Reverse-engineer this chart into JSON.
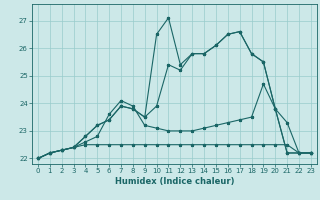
{
  "xlabel": "Humidex (Indice chaleur)",
  "bg_color": "#cce8e8",
  "line_color": "#1a6666",
  "grid_color": "#99cccc",
  "xlim": [
    -0.5,
    23.5
  ],
  "ylim": [
    21.8,
    27.6
  ],
  "yticks": [
    22,
    23,
    24,
    25,
    26,
    27
  ],
  "xticks": [
    0,
    1,
    2,
    3,
    4,
    5,
    6,
    7,
    8,
    9,
    10,
    11,
    12,
    13,
    14,
    15,
    16,
    17,
    18,
    19,
    20,
    21,
    22,
    23
  ],
  "line1_x": [
    0,
    1,
    2,
    3,
    4,
    5,
    6,
    7,
    8,
    9,
    10,
    11,
    12,
    13,
    14,
    15,
    16,
    17,
    18,
    19,
    20,
    21,
    22,
    23
  ],
  "line1_y": [
    22.0,
    22.2,
    22.3,
    22.4,
    22.5,
    22.5,
    22.5,
    22.5,
    22.5,
    22.5,
    22.5,
    22.5,
    22.5,
    22.5,
    22.5,
    22.5,
    22.5,
    22.5,
    22.5,
    22.5,
    22.5,
    22.5,
    22.2,
    22.2
  ],
  "line2_x": [
    0,
    1,
    2,
    3,
    4,
    5,
    6,
    7,
    8,
    9,
    10,
    11,
    12,
    13,
    14,
    15,
    16,
    17,
    18,
    19,
    20,
    21,
    22,
    23
  ],
  "line2_y": [
    22.0,
    22.2,
    22.3,
    22.4,
    22.6,
    22.8,
    23.6,
    24.1,
    23.9,
    23.2,
    23.1,
    23.0,
    23.0,
    23.0,
    23.1,
    23.2,
    23.3,
    23.4,
    23.5,
    24.7,
    23.8,
    23.3,
    22.2,
    22.2
  ],
  "line3_x": [
    0,
    1,
    2,
    3,
    4,
    5,
    6,
    7,
    8,
    9,
    10,
    11,
    12,
    13,
    14,
    15,
    16,
    17,
    18,
    19,
    20,
    21,
    22,
    23
  ],
  "line3_y": [
    22.0,
    22.2,
    22.3,
    22.4,
    22.8,
    23.2,
    23.4,
    23.9,
    23.8,
    23.5,
    23.9,
    25.4,
    25.2,
    25.8,
    25.8,
    26.1,
    26.5,
    26.6,
    25.8,
    25.5,
    23.8,
    22.2,
    22.2,
    22.2
  ],
  "line4_x": [
    0,
    1,
    2,
    3,
    4,
    5,
    6,
    7,
    8,
    9,
    10,
    11,
    12,
    13,
    14,
    15,
    16,
    17,
    18,
    19,
    20,
    21,
    22,
    23
  ],
  "line4_y": [
    22.0,
    22.2,
    22.3,
    22.4,
    22.8,
    23.2,
    23.4,
    23.9,
    23.8,
    23.5,
    26.5,
    27.1,
    25.4,
    25.8,
    25.8,
    26.1,
    26.5,
    26.6,
    25.8,
    25.5,
    23.8,
    22.2,
    22.2,
    22.2
  ]
}
